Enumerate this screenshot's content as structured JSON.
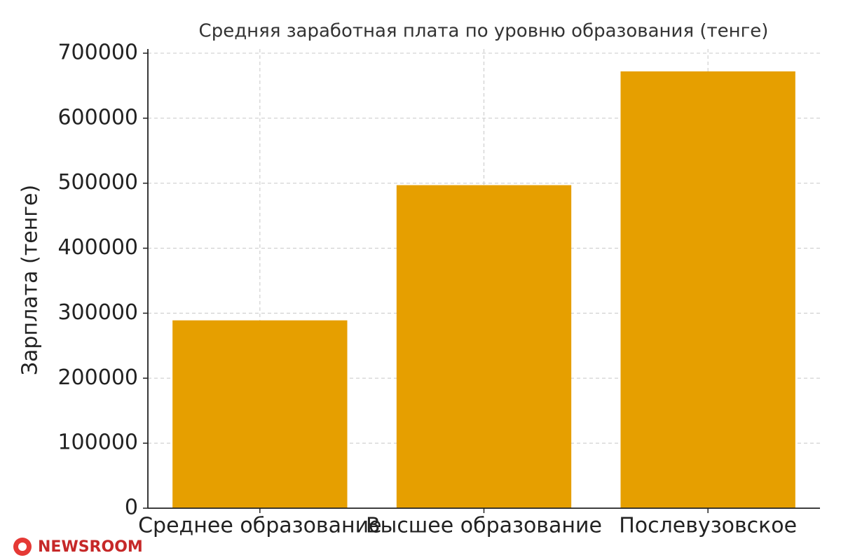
{
  "chart_data": {
    "type": "bar",
    "title": "Средняя заработная плата по уровню образования (тенге)",
    "y_label": "Зарплата (тенге)",
    "categories": [
      "Среднее образование",
      "Высшее образование",
      "Послевузовское"
    ],
    "values": [
      289000,
      497000,
      672000
    ],
    "color": "#e69f00",
    "ylim": [
      0,
      700000
    ],
    "yticks": [
      0,
      100000,
      200000,
      300000,
      400000,
      500000,
      600000,
      700000
    ],
    "grid": true
  },
  "watermark": "NEWSROOM"
}
